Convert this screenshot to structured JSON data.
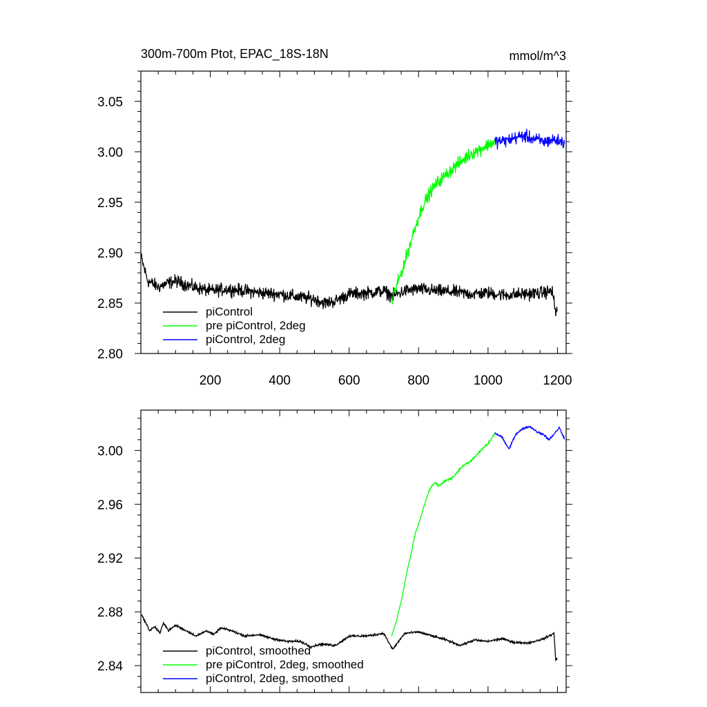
{
  "chart_data": [
    {
      "type": "line",
      "title": "300m-700m Ptot, EPAC_18S-18N",
      "units": "mmol/m^3",
      "xlabel": "",
      "ylabel": "",
      "xlim": [
        0,
        1225
      ],
      "ylim": [
        2.8,
        3.08
      ],
      "xticks": [
        200,
        400,
        600,
        800,
        1000,
        1200
      ],
      "xtick_labels": [
        "200",
        "400",
        "600",
        "800",
        "1000",
        "1200"
      ],
      "yticks": [
        2.8,
        2.85,
        2.9,
        2.95,
        3.0,
        3.05
      ],
      "ytick_labels": [
        "2.80",
        "2.85",
        "2.90",
        "2.95",
        "3.00",
        "3.05"
      ],
      "grid": false,
      "legend_position": "bottom-left",
      "series": [
        {
          "name": "piControl",
          "color": "#000000",
          "points": [
            [
              1,
              2.895
            ],
            [
              20,
              2.872
            ],
            [
              50,
              2.866
            ],
            [
              80,
              2.87
            ],
            [
              100,
              2.872
            ],
            [
              150,
              2.866
            ],
            [
              200,
              2.862
            ],
            [
              250,
              2.864
            ],
            [
              300,
              2.862
            ],
            [
              350,
              2.86
            ],
            [
              400,
              2.859
            ],
            [
              450,
              2.856
            ],
            [
              500,
              2.854
            ],
            [
              530,
              2.85
            ],
            [
              560,
              2.852
            ],
            [
              600,
              2.859
            ],
            [
              650,
              2.86
            ],
            [
              700,
              2.862
            ],
            [
              725,
              2.857
            ],
            [
              760,
              2.862
            ],
            [
              800,
              2.864
            ],
            [
              850,
              2.862
            ],
            [
              900,
              2.861
            ],
            [
              950,
              2.859
            ],
            [
              1000,
              2.86
            ],
            [
              1050,
              2.858
            ],
            [
              1100,
              2.859
            ],
            [
              1150,
              2.86
            ],
            [
              1185,
              2.862
            ],
            [
              1195,
              2.84
            ],
            [
              1200,
              2.845
            ]
          ]
        },
        {
          "name": "pre piControl, 2deg",
          "color": "#00ff00",
          "points": [
            [
              722,
              2.85
            ],
            [
              730,
              2.86
            ],
            [
              750,
              2.88
            ],
            [
              770,
              2.902
            ],
            [
              790,
              2.925
            ],
            [
              810,
              2.945
            ],
            [
              830,
              2.958
            ],
            [
              850,
              2.968
            ],
            [
              875,
              2.976
            ],
            [
              900,
              2.984
            ],
            [
              925,
              2.991
            ],
            [
              950,
              2.998
            ],
            [
              975,
              3.002
            ],
            [
              1000,
              3.007
            ],
            [
              1020,
              3.01
            ]
          ]
        },
        {
          "name": "piControl, 2deg",
          "color": "#0000ff",
          "points": [
            [
              1020,
              3.01
            ],
            [
              1050,
              3.011
            ],
            [
              1080,
              3.014
            ],
            [
              1100,
              3.016
            ],
            [
              1130,
              3.013
            ],
            [
              1160,
              3.01
            ],
            [
              1190,
              3.012
            ],
            [
              1220,
              3.009
            ]
          ]
        }
      ]
    },
    {
      "type": "line",
      "title": "",
      "xlabel": "",
      "ylabel": "",
      "xlim": [
        0,
        1225
      ],
      "ylim": [
        2.82,
        3.03
      ],
      "xticks": [
        200,
        400,
        600,
        800,
        1000,
        1200
      ],
      "yticks": [
        2.84,
        2.88,
        2.92,
        2.96,
        3.0
      ],
      "ytick_labels": [
        "2.84",
        "2.88",
        "2.92",
        "2.96",
        "3.00"
      ],
      "grid": false,
      "legend_position": "bottom-left",
      "series": [
        {
          "name": "piControl, smoothed",
          "color": "#000000",
          "points": [
            [
              1,
              2.878
            ],
            [
              10,
              2.874
            ],
            [
              25,
              2.866
            ],
            [
              40,
              2.869
            ],
            [
              55,
              2.864
            ],
            [
              65,
              2.872
            ],
            [
              80,
              2.866
            ],
            [
              100,
              2.87
            ],
            [
              130,
              2.866
            ],
            [
              160,
              2.862
            ],
            [
              190,
              2.866
            ],
            [
              210,
              2.863
            ],
            [
              230,
              2.868
            ],
            [
              260,
              2.866
            ],
            [
              300,
              2.862
            ],
            [
              340,
              2.863
            ],
            [
              380,
              2.86
            ],
            [
              420,
              2.858
            ],
            [
              460,
              2.858
            ],
            [
              490,
              2.854
            ],
            [
              520,
              2.856
            ],
            [
              560,
              2.855
            ],
            [
              600,
              2.862
            ],
            [
              650,
              2.862
            ],
            [
              700,
              2.864
            ],
            [
              725,
              2.852
            ],
            [
              760,
              2.864
            ],
            [
              800,
              2.865
            ],
            [
              840,
              2.862
            ],
            [
              880,
              2.859
            ],
            [
              920,
              2.855
            ],
            [
              960,
              2.859
            ],
            [
              1000,
              2.858
            ],
            [
              1040,
              2.86
            ],
            [
              1080,
              2.857
            ],
            [
              1120,
              2.857
            ],
            [
              1160,
              2.86
            ],
            [
              1190,
              2.864
            ],
            [
              1195,
              2.844
            ],
            [
              1200,
              2.846
            ]
          ]
        },
        {
          "name": "pre piControl, 2deg, smoothed",
          "color": "#00ff00",
          "points": [
            [
              722,
              2.862
            ],
            [
              735,
              2.872
            ],
            [
              750,
              2.888
            ],
            [
              765,
              2.908
            ],
            [
              780,
              2.925
            ],
            [
              790,
              2.938
            ],
            [
              800,
              2.945
            ],
            [
              815,
              2.958
            ],
            [
              830,
              2.97
            ],
            [
              845,
              2.976
            ],
            [
              860,
              2.974
            ],
            [
              880,
              2.978
            ],
            [
              900,
              2.98
            ],
            [
              925,
              2.988
            ],
            [
              950,
              2.992
            ],
            [
              975,
              2.999
            ],
            [
              1000,
              3.005
            ],
            [
              1020,
              3.013
            ]
          ]
        },
        {
          "name": "piControl, 2deg, smoothed",
          "color": "#0000ff",
          "points": [
            [
              1020,
              3.013
            ],
            [
              1040,
              3.01
            ],
            [
              1060,
              3.001
            ],
            [
              1080,
              3.012
            ],
            [
              1100,
              3.016
            ],
            [
              1120,
              3.018
            ],
            [
              1140,
              3.014
            ],
            [
              1160,
              3.012
            ],
            [
              1175,
              3.008
            ],
            [
              1190,
              3.012
            ],
            [
              1205,
              3.017
            ],
            [
              1220,
              3.009
            ]
          ]
        }
      ]
    }
  ]
}
